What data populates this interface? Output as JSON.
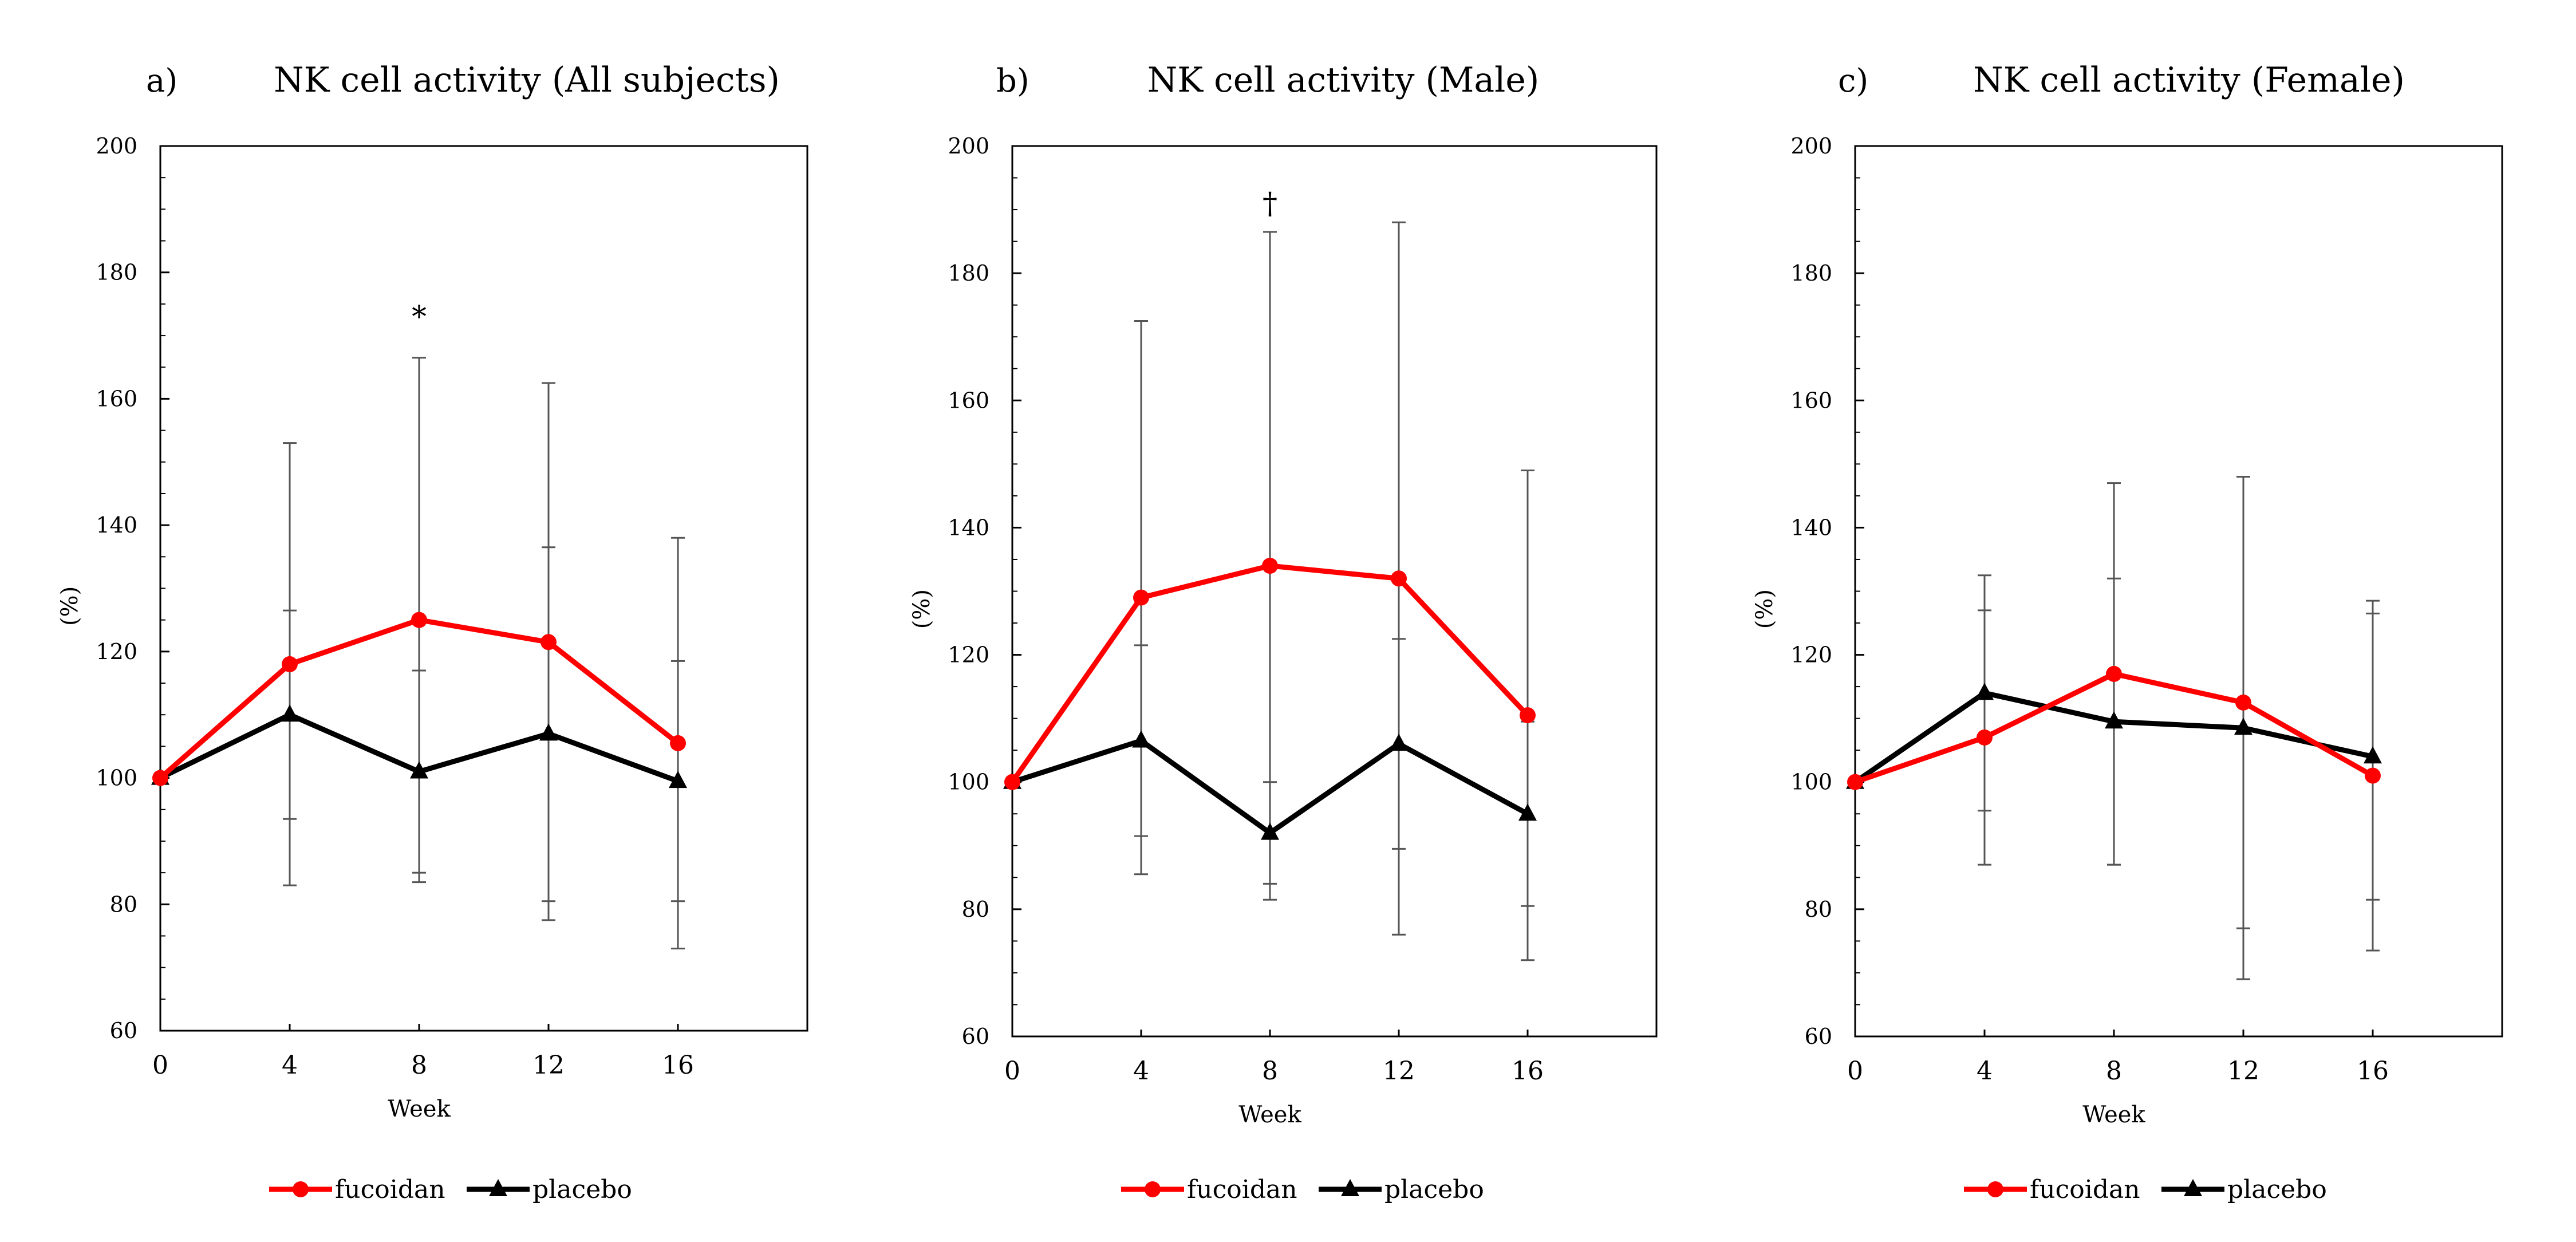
{
  "figure": {
    "colors": {
      "fucoidan": "#ff0000",
      "placebo": "#000000",
      "error_bar": "#555555",
      "axis": "#000000"
    }
  },
  "chart_data": [
    {
      "type": "line",
      "panel_label": "a)",
      "title": "NK cell activity (All subjects)",
      "xlabel": "Week",
      "ylabel": "(%)",
      "x": [
        0,
        4,
        8,
        12,
        16
      ],
      "x_tick_labels": [
        "0",
        "4",
        "8",
        "12",
        "16"
      ],
      "xlim": [
        0,
        20
      ],
      "ylim": [
        60,
        200
      ],
      "y_ticks": [
        60,
        80,
        100,
        120,
        140,
        160,
        180,
        200
      ],
      "y_tick_labels": [
        "60",
        "80",
        "100",
        "120",
        "140",
        "160",
        "180",
        "200"
      ],
      "grid": false,
      "legend_position": "bottom-center",
      "series": [
        {
          "name": "fucoidan",
          "marker": "circle",
          "color": "#ff0000",
          "values": [
            100,
            118,
            125,
            121.5,
            105.5
          ],
          "error": [
            0,
            35,
            41.5,
            41,
            32.5
          ]
        },
        {
          "name": "placebo",
          "marker": "triangle",
          "color": "#000000",
          "values": [
            100,
            110,
            101,
            107,
            99.5
          ],
          "error": [
            0,
            16.5,
            16,
            29.5,
            19
          ]
        }
      ],
      "annotations": [
        {
          "text": "*",
          "x": 8,
          "y": 173
        }
      ]
    },
    {
      "type": "line",
      "panel_label": "b)",
      "title": "NK cell activity (Male)",
      "xlabel": "Week",
      "ylabel": "(%)",
      "x": [
        0,
        4,
        8,
        12,
        16
      ],
      "x_tick_labels": [
        "0",
        "4",
        "8",
        "12",
        "16"
      ],
      "xlim": [
        0,
        20
      ],
      "ylim": [
        60,
        200
      ],
      "y_ticks": [
        60,
        80,
        100,
        120,
        140,
        160,
        180,
        200
      ],
      "y_tick_labels": [
        "60",
        "80",
        "100",
        "120",
        "140",
        "160",
        "180",
        "200"
      ],
      "grid": false,
      "legend_position": "bottom-center",
      "series": [
        {
          "name": "fucoidan",
          "marker": "circle",
          "color": "#ff0000",
          "values": [
            100,
            129,
            134,
            132,
            110.5
          ],
          "error": [
            0,
            43.5,
            52.5,
            56,
            38.5
          ]
        },
        {
          "name": "placebo",
          "marker": "triangle",
          "color": "#000000",
          "values": [
            100,
            106.5,
            92,
            106,
            95
          ],
          "error": [
            0,
            15,
            8,
            16.5,
            14.5
          ]
        }
      ],
      "annotations": [
        {
          "text": "†",
          "x": 8,
          "y": 191
        }
      ]
    },
    {
      "type": "line",
      "panel_label": "c)",
      "title": "NK cell activity (Female)",
      "xlabel": "Week",
      "ylabel": "(%)",
      "x": [
        0,
        4,
        8,
        12,
        16
      ],
      "x_tick_labels": [
        "0",
        "4",
        "8",
        "12",
        "16"
      ],
      "xlim": [
        0,
        20
      ],
      "ylim": [
        60,
        200
      ],
      "y_ticks": [
        60,
        80,
        100,
        120,
        140,
        160,
        180,
        200
      ],
      "y_tick_labels": [
        "60",
        "80",
        "100",
        "120",
        "140",
        "160",
        "180",
        "200"
      ],
      "grid": false,
      "legend_position": "bottom-center",
      "series": [
        {
          "name": "fucoidan",
          "marker": "circle",
          "color": "#ff0000",
          "values": [
            100,
            107,
            117,
            112.5,
            101
          ],
          "error": [
            0,
            20,
            30,
            35.5,
            27.5
          ]
        },
        {
          "name": "placebo",
          "marker": "triangle",
          "color": "#000000",
          "values": [
            100,
            114,
            109.5,
            108.5,
            104
          ],
          "error": [
            0,
            18.5,
            22.5,
            39.5,
            22.5
          ]
        }
      ],
      "annotations": []
    }
  ]
}
